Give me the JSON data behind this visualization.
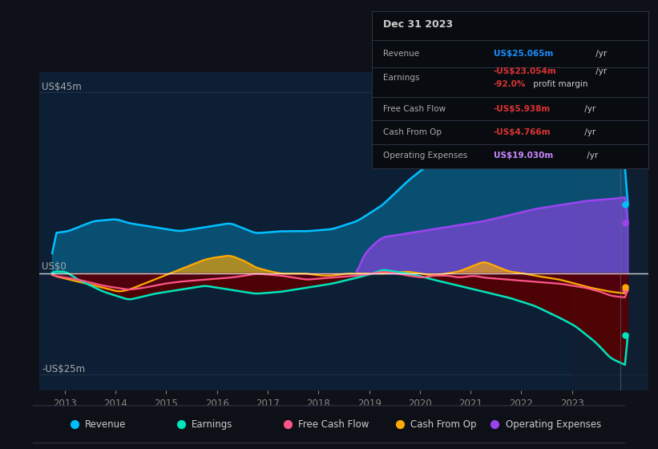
{
  "bg_color": "#0e1117",
  "chart_bg": "#0d1f35",
  "tooltip_bg": "#080c10",
  "ylabel_us45": "US$45m",
  "ylabel_us0": "US$0",
  "ylabel_usn25": "-US$25m",
  "xlim": [
    2012.5,
    2024.5
  ],
  "ylim": [
    -29,
    50
  ],
  "years_ticks": [
    2013,
    2014,
    2015,
    2016,
    2017,
    2018,
    2019,
    2020,
    2021,
    2022,
    2023
  ],
  "revenue_color": "#00bfff",
  "earnings_color": "#00e5bb",
  "fcf_color": "#ff5588",
  "cashfromop_color": "#ffaa00",
  "opex_color": "#9944ee",
  "tooltip": {
    "date": "Dec 31 2023",
    "revenue_val": "US$25.065m",
    "earnings_val": "-US$23.054m",
    "profit_margin": "-92.0%",
    "fcf_val": "-US$5.938m",
    "cashfromop_val": "-US$4.766m",
    "opex_val": "US$19.030m"
  },
  "legend_items": [
    {
      "label": "Revenue",
      "color": "#00bfff"
    },
    {
      "label": "Earnings",
      "color": "#00e5bb"
    },
    {
      "label": "Free Cash Flow",
      "color": "#ff5588"
    },
    {
      "label": "Cash From Op",
      "color": "#ffaa00"
    },
    {
      "label": "Operating Expenses",
      "color": "#9944ee"
    }
  ]
}
